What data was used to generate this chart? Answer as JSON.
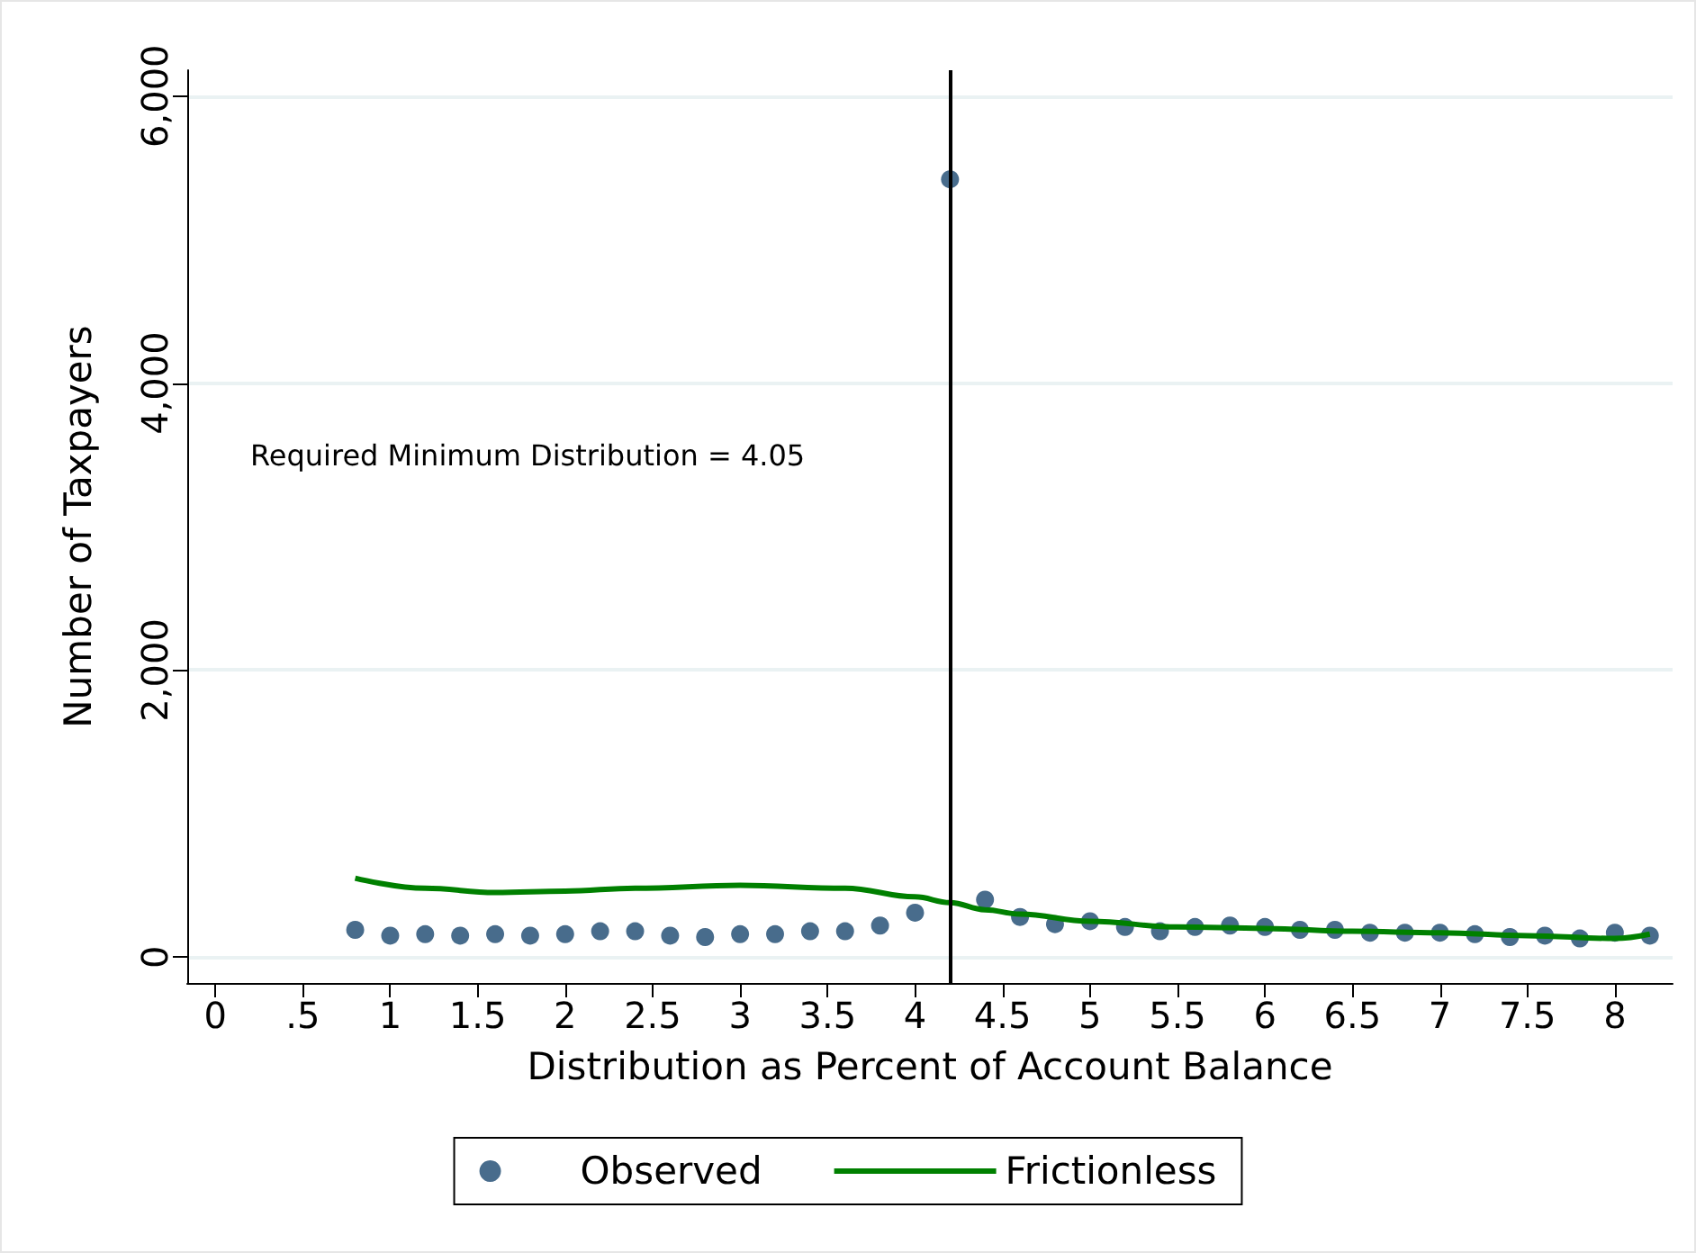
{
  "chart_data": {
    "type": "scatter",
    "xlabel": "Distribution as Percent of Account Balance",
    "ylabel": "Number of Taxpayers",
    "xlim": [
      -0.16,
      8.33
    ],
    "ylim": [
      -180,
      6180
    ],
    "xticks": [
      0,
      {
        "value": 0.5,
        "label": ".5"
      },
      1,
      1.5,
      2,
      2.5,
      3,
      3.5,
      4,
      4.5,
      5,
      5.5,
      6,
      6.5,
      7,
      7.5,
      8
    ],
    "yticks": [
      {
        "value": 0,
        "label": "0"
      },
      {
        "value": 2000,
        "label": "2,000"
      },
      {
        "value": 4000,
        "label": "4,000"
      },
      {
        "value": 6000,
        "label": "6,000"
      }
    ],
    "grid": "y",
    "legend": "bottom",
    "marker": "circle",
    "ref_lines": [
      {
        "axis": "x",
        "value": 4.2,
        "color": "#000000"
      }
    ],
    "annotations": [
      "Required Minimum Distribution = 4.05"
    ],
    "series": [
      {
        "name": "Observed",
        "type": "scatter",
        "color": "#1a476f",
        "x": [
          0.8,
          1.0,
          1.2,
          1.4,
          1.6,
          1.8,
          2.0,
          2.2,
          2.4,
          2.6,
          2.8,
          3.0,
          3.2,
          3.4,
          3.6,
          3.8,
          4.0,
          4.2,
          4.4,
          4.6,
          4.8,
          5.0,
          5.2,
          5.4,
          5.6,
          5.8,
          6.0,
          6.2,
          6.4,
          6.6,
          6.8,
          7.0,
          7.2,
          7.4,
          7.6,
          7.8,
          8.0,
          8.2
        ],
        "values": [
          190,
          150,
          160,
          150,
          160,
          150,
          160,
          180,
          180,
          150,
          140,
          160,
          160,
          180,
          180,
          220,
          310,
          5420,
          400,
          280,
          230,
          250,
          210,
          180,
          210,
          220,
          210,
          190,
          190,
          170,
          170,
          170,
          160,
          140,
          150,
          130,
          170,
          150
        ]
      },
      {
        "name": "Frictionless",
        "type": "line",
        "marker": "none",
        "color": "#008000",
        "x": [
          0.8,
          1.2,
          1.6,
          2.0,
          2.4,
          3.0,
          3.6,
          4.0,
          4.2,
          4.4,
          4.6,
          5.0,
          5.5,
          6.0,
          6.5,
          7.0,
          7.5,
          8.0,
          8.2
        ],
        "values": [
          550,
          480,
          450,
          460,
          480,
          500,
          480,
          420,
          380,
          330,
          300,
          250,
          210,
          200,
          180,
          170,
          150,
          130,
          160
        ]
      }
    ]
  }
}
